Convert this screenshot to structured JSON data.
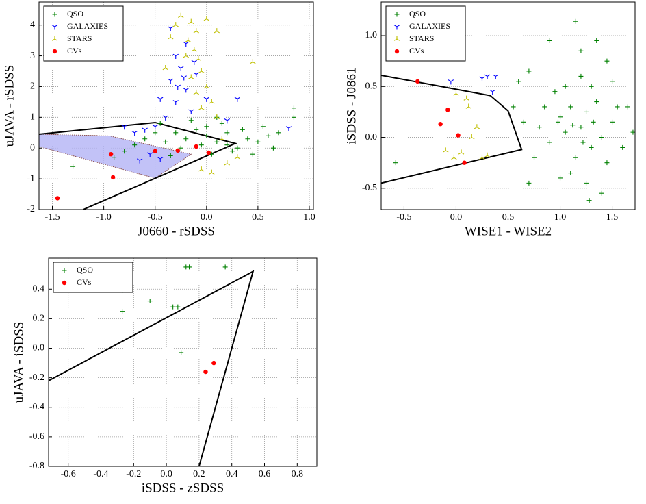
{
  "chart_data": [
    {
      "type": "scatter",
      "xlabel": "J0660 - rSDSS",
      "ylabel": "uJAVA - rSDSS",
      "xlim": [
        -1.63,
        1.04
      ],
      "ylim": [
        -2,
        4.75
      ],
      "xticks": [
        -1.5,
        {
          "value": -1,
          "label": "-1.0"
        },
        -0.5,
        {
          "value": 0,
          "label": "0.0"
        },
        0.5,
        {
          "value": 1,
          "label": "1.0"
        }
      ],
      "yticks": [
        -2,
        -1,
        0,
        1,
        2,
        3,
        4
      ],
      "grid": true,
      "legend": "upper left",
      "polygons": [
        {
          "x": [
            -1.63,
            -0.95,
            -0.15,
            -0.5,
            -1.63
          ],
          "y": [
            0.45,
            0.4,
            -0.2,
            -0.98,
            0.05
          ],
          "color": "#b3b3f5",
          "filled": true
        },
        {
          "x": [
            -1.63,
            -0.5,
            0.28,
            -1.2
          ],
          "y": [
            0.45,
            0.83,
            0.15,
            -2.0
          ],
          "color": "#000000",
          "filled": false
        }
      ],
      "series": [
        {
          "name": "QSO",
          "color": "#008000",
          "marker": "plus",
          "x": [
            -0.3,
            -0.2,
            -0.1,
            0.0,
            0.1,
            0.2,
            -0.05,
            0.3,
            0.4,
            0.5,
            0.6,
            -0.4,
            -0.5,
            -0.6,
            -0.7,
            -0.8,
            0.15,
            -0.15,
            0.05,
            0.25,
            0.35,
            -0.25,
            0.45,
            0.55,
            0.65,
            0.85,
            0.85,
            -1.3,
            -0.9,
            0.7,
            -0.35,
            0.1,
            -0.45,
            0.2,
            0.0
          ],
          "y": [
            0.5,
            0.3,
            0.6,
            0.4,
            0.2,
            0.5,
            0.1,
            0.0,
            0.3,
            0.2,
            0.4,
            0.2,
            0.5,
            0.3,
            0.1,
            -0.1,
            0.8,
            0.9,
            -0.2,
            -0.1,
            0.6,
            0.0,
            -0.2,
            0.7,
            0.0,
            1.3,
            1.0,
            -0.6,
            -0.3,
            0.5,
            -0.25,
            1.0,
            0.8,
            0.1,
            0.7
          ]
        },
        {
          "name": "GALAXIES",
          "color": "#0000ff",
          "marker": "tri_down",
          "x": [
            -0.3,
            -0.25,
            -0.35,
            -0.2,
            -0.3,
            -0.15,
            -0.4,
            -0.5,
            -0.6,
            -0.7,
            -0.8,
            -0.2,
            -0.28,
            -0.45,
            -0.1,
            0.0,
            0.2,
            -0.65,
            -0.45,
            -0.55,
            0.8,
            -0.35,
            0.3,
            -0.12,
            -0.22
          ],
          "y": [
            3.0,
            2.6,
            2.2,
            1.9,
            1.5,
            1.2,
            1.0,
            0.7,
            0.6,
            0.5,
            0.7,
            3.4,
            2.0,
            1.6,
            2.4,
            1.6,
            0.9,
            -0.4,
            -0.35,
            -0.2,
            0.65,
            3.9,
            1.6,
            2.8,
            2.3
          ]
        },
        {
          "name": "STARS",
          "color": "#bfbf00",
          "marker": "tri_up",
          "x": [
            -0.25,
            -0.15,
            -0.1,
            -0.18,
            -0.12,
            -0.08,
            -0.2,
            -0.05,
            -0.15,
            0.0,
            -0.1,
            0.05,
            -0.05,
            0.1,
            -0.3,
            0.0,
            -0.35,
            0.1,
            0.45,
            0.2,
            0.05,
            0.3,
            -0.05,
            0.15,
            -0.4
          ],
          "y": [
            4.3,
            4.1,
            3.8,
            3.5,
            3.2,
            2.9,
            3.0,
            2.5,
            2.3,
            2.0,
            1.8,
            1.5,
            1.3,
            1.0,
            4.0,
            4.2,
            3.6,
            3.8,
            2.8,
            -0.5,
            -0.8,
            -0.3,
            -0.7,
            0.3,
            2.6
          ]
        },
        {
          "name": "CVs",
          "color": "#ff0000",
          "marker": "circle",
          "x": [
            -1.45,
            -0.93,
            -0.91,
            -0.5,
            -0.28,
            -0.1,
            0.02
          ],
          "y": [
            -1.63,
            -0.2,
            -0.95,
            -0.1,
            -0.08,
            0.05,
            -0.15
          ]
        }
      ]
    },
    {
      "type": "scatter",
      "xlabel": "WISE1 - WISE2",
      "ylabel": "iSDSS - J0861",
      "xlim": [
        -0.72,
        1.72
      ],
      "ylim": [
        -0.71,
        1.33
      ],
      "xticks": [
        -0.5,
        {
          "value": 0,
          "label": "0.0"
        },
        0.5,
        {
          "value": 1,
          "label": "1.0"
        },
        1.5
      ],
      "yticks": [
        -0.5,
        {
          "value": 0,
          "label": "0.0"
        },
        0.5,
        {
          "value": 1,
          "label": "1.0"
        }
      ],
      "grid": true,
      "legend": "upper left",
      "polygons": [
        {
          "x": [
            -0.72,
            0.33,
            0.5,
            0.63,
            -0.72
          ],
          "y": [
            0.61,
            0.41,
            0.26,
            -0.12,
            -0.45
          ],
          "color": "#000000",
          "filled": false
        }
      ],
      "series": [
        {
          "name": "QSO",
          "color": "#008000",
          "marker": "plus",
          "x": [
            1.2,
            1.0,
            1.3,
            1.1,
            1.4,
            0.9,
            1.25,
            1.5,
            0.8,
            1.15,
            1.35,
            1.05,
            1.6,
            1.45,
            0.95,
            1.2,
            1.1,
            0.85,
            1.3,
            1.7,
            1.55,
            0.75,
            1.0,
            1.25,
            1.4,
            1.2,
            1.15,
            0.9,
            1.35,
            0.7,
            0.6,
            0.55,
            1.5,
            1.65,
            1.05,
            1.22,
            1.32,
            0.98,
            1.12,
            -0.58,
            0.7,
            1.45,
            1.28,
            0.65
          ],
          "y": [
            0.1,
            0.2,
            -0.1,
            0.3,
            0.0,
            -0.05,
            0.25,
            0.15,
            0.1,
            -0.2,
            0.35,
            0.5,
            -0.1,
            -0.25,
            0.45,
            0.6,
            -0.35,
            0.3,
            0.5,
            0.05,
            0.3,
            -0.2,
            -0.4,
            -0.45,
            -0.55,
            0.85,
            1.14,
            0.95,
            0.95,
            0.65,
            0.55,
            0.3,
            0.55,
            0.3,
            0.05,
            -0.05,
            0.15,
            0.15,
            0.12,
            -0.25,
            -0.45,
            0.75,
            -0.62,
            0.15
          ]
        },
        {
          "name": "GALAXIES",
          "color": "#0000ff",
          "marker": "tri_down",
          "x": [
            0.3,
            0.38,
            0.35,
            0.25,
            -0.05
          ],
          "y": [
            0.6,
            0.6,
            0.45,
            0.58,
            0.55
          ]
        },
        {
          "name": "STARS",
          "color": "#bfbf00",
          "marker": "tri_up",
          "x": [
            0.0,
            0.12,
            0.2,
            0.25,
            -0.1,
            0.05,
            0.15,
            0.1,
            -0.02,
            0.3
          ],
          "y": [
            0.43,
            0.3,
            0.1,
            -0.2,
            -0.13,
            -0.15,
            0.0,
            0.38,
            -0.2,
            -0.18
          ]
        },
        {
          "name": "CVs",
          "color": "#ff0000",
          "marker": "circle",
          "x": [
            -0.37,
            -0.08,
            -0.15,
            0.02,
            0.08
          ],
          "y": [
            0.55,
            0.27,
            0.13,
            0.02,
            -0.25
          ]
        }
      ]
    },
    {
      "type": "scatter",
      "xlabel": "iSDSS - zSDSS",
      "ylabel": "uJAVA - iSDSS",
      "xlim": [
        -0.72,
        0.92
      ],
      "ylim": [
        -0.8,
        0.61
      ],
      "xticks": [
        -0.6,
        -0.4,
        -0.2,
        {
          "value": 0,
          "label": "0.0"
        },
        0.2,
        0.4,
        0.6,
        0.8
      ],
      "yticks": [
        -0.8,
        -0.6,
        -0.4,
        -0.2,
        {
          "value": 0,
          "label": "0.0"
        },
        0.2,
        0.4
      ],
      "grid": true,
      "legend": "upper left",
      "polygons": [
        {
          "x": [
            -0.72,
            0.53,
            0.2
          ],
          "y": [
            -0.22,
            0.52,
            -0.8
          ],
          "color": "#000000",
          "filled": false
        }
      ],
      "series": [
        {
          "name": "QSO",
          "color": "#008000",
          "marker": "plus",
          "x": [
            -0.27,
            -0.27,
            -0.1,
            0.12,
            0.14,
            0.36,
            0.04,
            0.07,
            0.09
          ],
          "y": [
            0.39,
            0.25,
            0.32,
            0.55,
            0.55,
            0.55,
            0.28,
            0.28,
            -0.03
          ]
        },
        {
          "name": "CVs",
          "color": "#ff0000",
          "marker": "circle",
          "x": [
            0.24,
            0.29
          ],
          "y": [
            -0.16,
            -0.1
          ]
        }
      ]
    }
  ]
}
